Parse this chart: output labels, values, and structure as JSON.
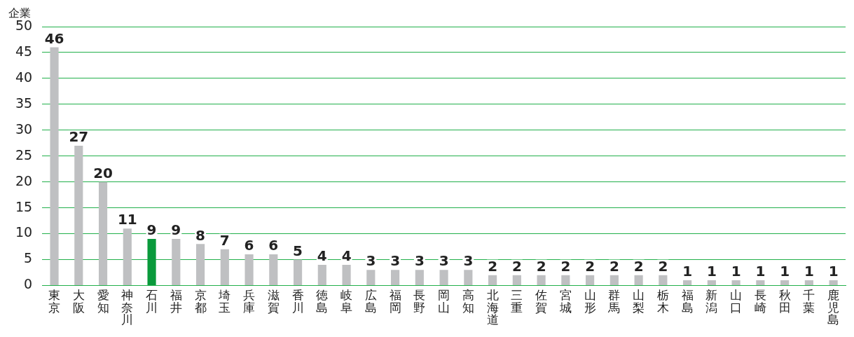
{
  "chart_data": {
    "type": "bar",
    "ylabel": "企業",
    "categories": [
      "東京",
      "大阪",
      "愛知",
      "神奈川",
      "石川",
      "福井",
      "京都",
      "埼玉",
      "兵庫",
      "滋賀",
      "香川",
      "徳島",
      "岐阜",
      "広島",
      "福岡",
      "長野",
      "岡山",
      "高知",
      "北海道",
      "三重",
      "佐賀",
      "宮城",
      "山形",
      "群馬",
      "山梨",
      "栃木",
      "福島",
      "新潟",
      "山口",
      "長崎",
      "秋田",
      "千葉",
      "鹿児島"
    ],
    "values": [
      46,
      27,
      20,
      11,
      9,
      9,
      8,
      7,
      6,
      6,
      5,
      4,
      4,
      3,
      3,
      3,
      3,
      3,
      2,
      2,
      2,
      2,
      2,
      2,
      2,
      2,
      1,
      1,
      1,
      1,
      1,
      1,
      1
    ],
    "colors": [
      "#bfc0c2",
      "#bfc0c2",
      "#bfc0c2",
      "#bfc0c2",
      "#0a9a3c",
      "#bfc0c2",
      "#bfc0c2",
      "#bfc0c2",
      "#bfc0c2",
      "#bfc0c2",
      "#bfc0c2",
      "#bfc0c2",
      "#bfc0c2",
      "#bfc0c2",
      "#bfc0c2",
      "#bfc0c2",
      "#bfc0c2",
      "#bfc0c2",
      "#bfc0c2",
      "#bfc0c2",
      "#bfc0c2",
      "#bfc0c2",
      "#bfc0c2",
      "#bfc0c2",
      "#bfc0c2",
      "#bfc0c2",
      "#bfc0c2",
      "#bfc0c2",
      "#bfc0c2",
      "#bfc0c2",
      "#bfc0c2",
      "#bfc0c2",
      "#bfc0c2"
    ],
    "ylim": [
      0,
      50
    ],
    "yticks": [
      0,
      5,
      10,
      15,
      20,
      25,
      30,
      35,
      40,
      45,
      50
    ],
    "grid": "y",
    "data_labels": true
  }
}
